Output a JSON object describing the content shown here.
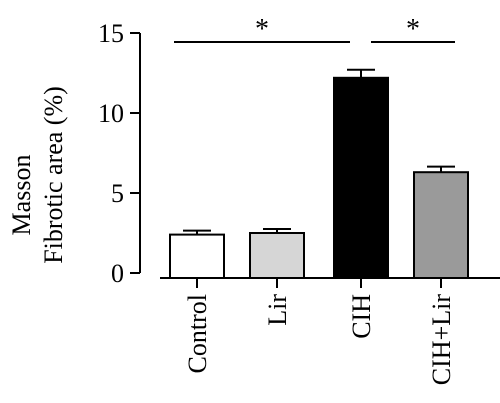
{
  "chart_data": {
    "type": "bar",
    "categories": [
      "Control",
      "Lir",
      "CIH",
      "CIH+Lir"
    ],
    "values": [
      2.4,
      2.5,
      12.2,
      6.3
    ],
    "errors": [
      0.25,
      0.25,
      0.5,
      0.35
    ],
    "ylabel_lines": [
      "Masson",
      "Fibrotic area (%)"
    ],
    "xlabel": "",
    "ylim": [
      0,
      15
    ],
    "yticks": [
      "0",
      "5",
      "10",
      "15"
    ],
    "significance": [
      {
        "from": 0,
        "to": 2,
        "label": "*"
      },
      {
        "from": 2,
        "to": 3,
        "label": "*"
      }
    ],
    "bar_colors": [
      "#ffffff",
      "#d6d6d6",
      "#000000",
      "#9a9a9a"
    ],
    "grid": false,
    "legend": "none"
  }
}
